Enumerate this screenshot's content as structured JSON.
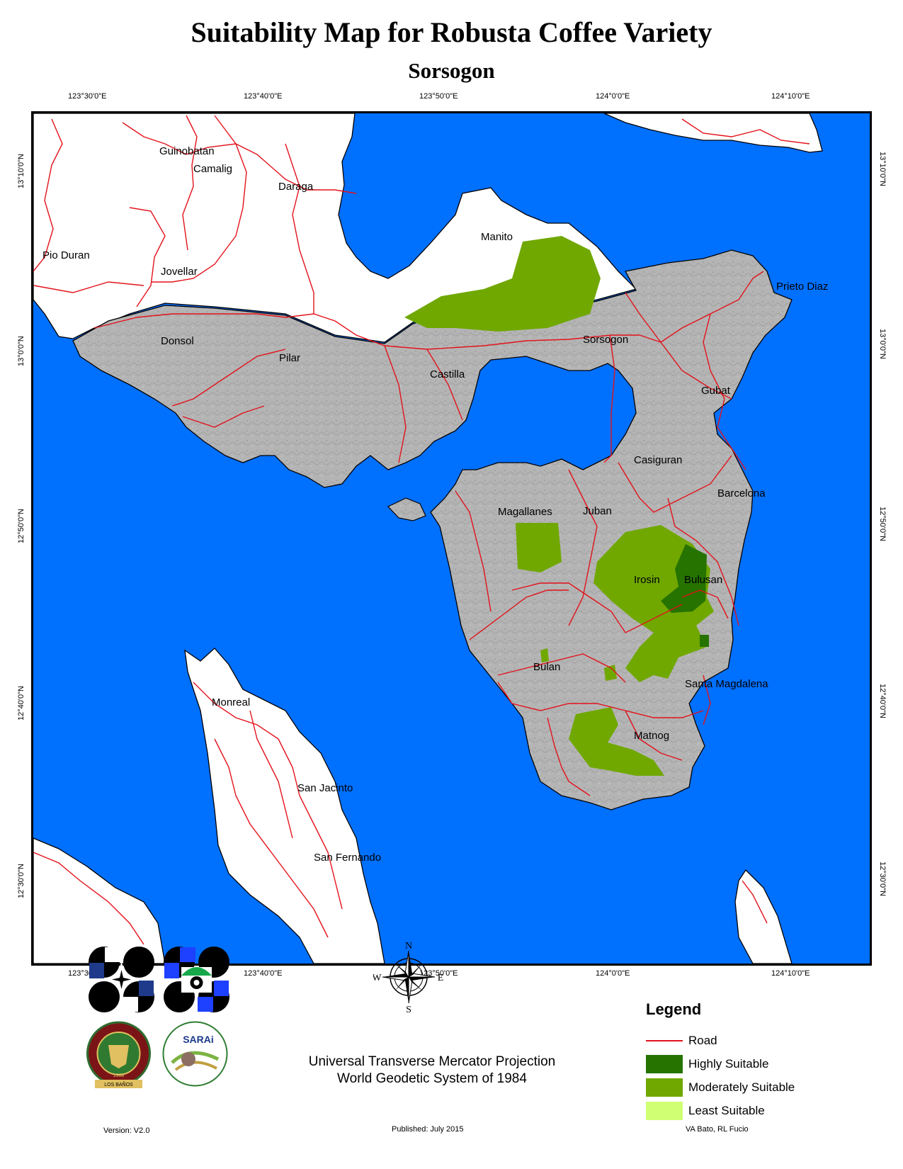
{
  "title": "Suitability Map for Robusta Coffee Variety",
  "subtitle": "Sorsogon",
  "lon_ticks": [
    "123°30'0\"E",
    "123°40'0\"E",
    "123°50'0\"E",
    "124°0'0\"E",
    "124°10'0\"E"
  ],
  "lat_ticks": [
    "13°10'0\"N",
    "13°0'0\"N",
    "12°50'0\"N",
    "12°40'0\"N",
    "12°30'0\"N"
  ],
  "places": {
    "guinobatan": "Guinobatan",
    "camalig": "Camalig",
    "daraga": "Daraga",
    "pio_duran": "Pio Duran",
    "jovellar": "Jovellar",
    "manito": "Manito",
    "prieto_diaz": "Prieto Diaz",
    "donsol": "Donsol",
    "pilar": "Pilar",
    "castilla": "Castilla",
    "sorsogon": "Sorsogon",
    "gubat": "Gubat",
    "casiguran": "Casiguran",
    "barcelona": "Barcelona",
    "magallanes": "Magallanes",
    "juban": "Juban",
    "irosin": "Irosin",
    "bulusan": "Bulusan",
    "bulan": "Bulan",
    "santa_magdalena": "Santa Magdalena",
    "monreal": "Monreal",
    "matnog": "Matnog",
    "san_jacinto": "San Jacinto",
    "san_fernando": "San Fernando"
  },
  "compass": {
    "n": "N",
    "s": "S",
    "e": "E",
    "w": "W"
  },
  "legend": {
    "title": "Legend",
    "items": [
      {
        "label": "Road",
        "color": "#e3121b"
      },
      {
        "label": "Highly Suitable",
        "color": "#267300"
      },
      {
        "label": "Moderately Suitable",
        "color": "#70a800"
      },
      {
        "label": "Least Suitable",
        "color": "#d1ff73"
      }
    ]
  },
  "projection": [
    "Universal Transverse Mercator Projection",
    "World Geodetic System of 1984"
  ],
  "version": "Version: V2.0",
  "published": "Published: July 2015",
  "authors": "VA Bato, RL Fucio",
  "logo_text": {
    "sarai": "SARAi",
    "uplb_year": "1908",
    "uplb_bottom": "LOS BAÑOS",
    "uplb_arc": "UNIVERSITY OF THE PHILIPPINES"
  },
  "colors": {
    "sea": "#0070ff",
    "land_study": "#b4b4b4",
    "land_other": "#ffffff",
    "road": "#e3121b"
  }
}
